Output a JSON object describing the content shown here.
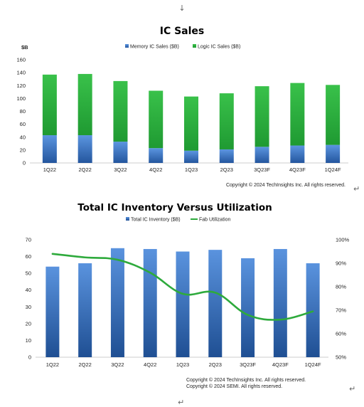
{
  "paragraph_mark": "↵",
  "down_arrow": "↓",
  "chart_data": [
    {
      "type": "bar",
      "stacked": true,
      "title": "IC Sales",
      "ylabel": "$B",
      "xlabel": "",
      "categories": [
        "1Q22",
        "2Q22",
        "3Q22",
        "4Q22",
        "1Q23",
        "2Q23",
        "3Q23F",
        "4Q23F",
        "1Q24F"
      ],
      "series": [
        {
          "name": "Memory IC Sales ($B)",
          "color": "#3a70c0",
          "values": [
            43,
            43,
            33,
            23,
            19,
            21,
            25,
            27,
            28
          ]
        },
        {
          "name": "Logic IC Sales ($B)",
          "color": "#2eaa3c",
          "values": [
            94,
            95,
            94,
            89,
            84,
            87,
            94,
            97,
            93
          ]
        }
      ],
      "ylim": [
        0,
        160
      ],
      "yticks": [
        0,
        20,
        40,
        60,
        80,
        100,
        120,
        140,
        160
      ],
      "grid": false,
      "legend_position": "top",
      "copyright": "Copyright © 2024 TechInsights Inc.  All rights reserved."
    },
    {
      "type": "bar+line",
      "title": "Total IC Inventory Versus Utilization",
      "xlabel": "",
      "ylabel": "",
      "categories": [
        "1Q22",
        "2Q22",
        "3Q22",
        "4Q22",
        "1Q23",
        "2Q23",
        "3Q23F",
        "4Q23F",
        "1Q24F"
      ],
      "series": [
        {
          "name": "Total IC Inventory ($B)",
          "type": "bar",
          "axis": "left",
          "color": "#3a70c0",
          "values": [
            54,
            56,
            65,
            64.5,
            63,
            64,
            59,
            64.5,
            56
          ]
        },
        {
          "name": "Fab Utilization",
          "type": "line",
          "axis": "right",
          "color": "#2eaa3c",
          "values": [
            94,
            92.5,
            91.5,
            86,
            77,
            77.5,
            68,
            66,
            69.5
          ]
        }
      ],
      "ylim_left": [
        0,
        70
      ],
      "yticks_left": [
        0,
        10,
        20,
        30,
        40,
        50,
        60,
        70
      ],
      "ylim_right": [
        50,
        100
      ],
      "yticks_right": [
        "50%",
        "60%",
        "70%",
        "80%",
        "90%",
        "100%"
      ],
      "grid": false,
      "legend_position": "top",
      "copyright_lines": [
        "Copyright © 2024 TechInsights Inc.  All rights reserved.",
        "Copyright © 2024 SEMI.  All rights reserved."
      ]
    }
  ]
}
